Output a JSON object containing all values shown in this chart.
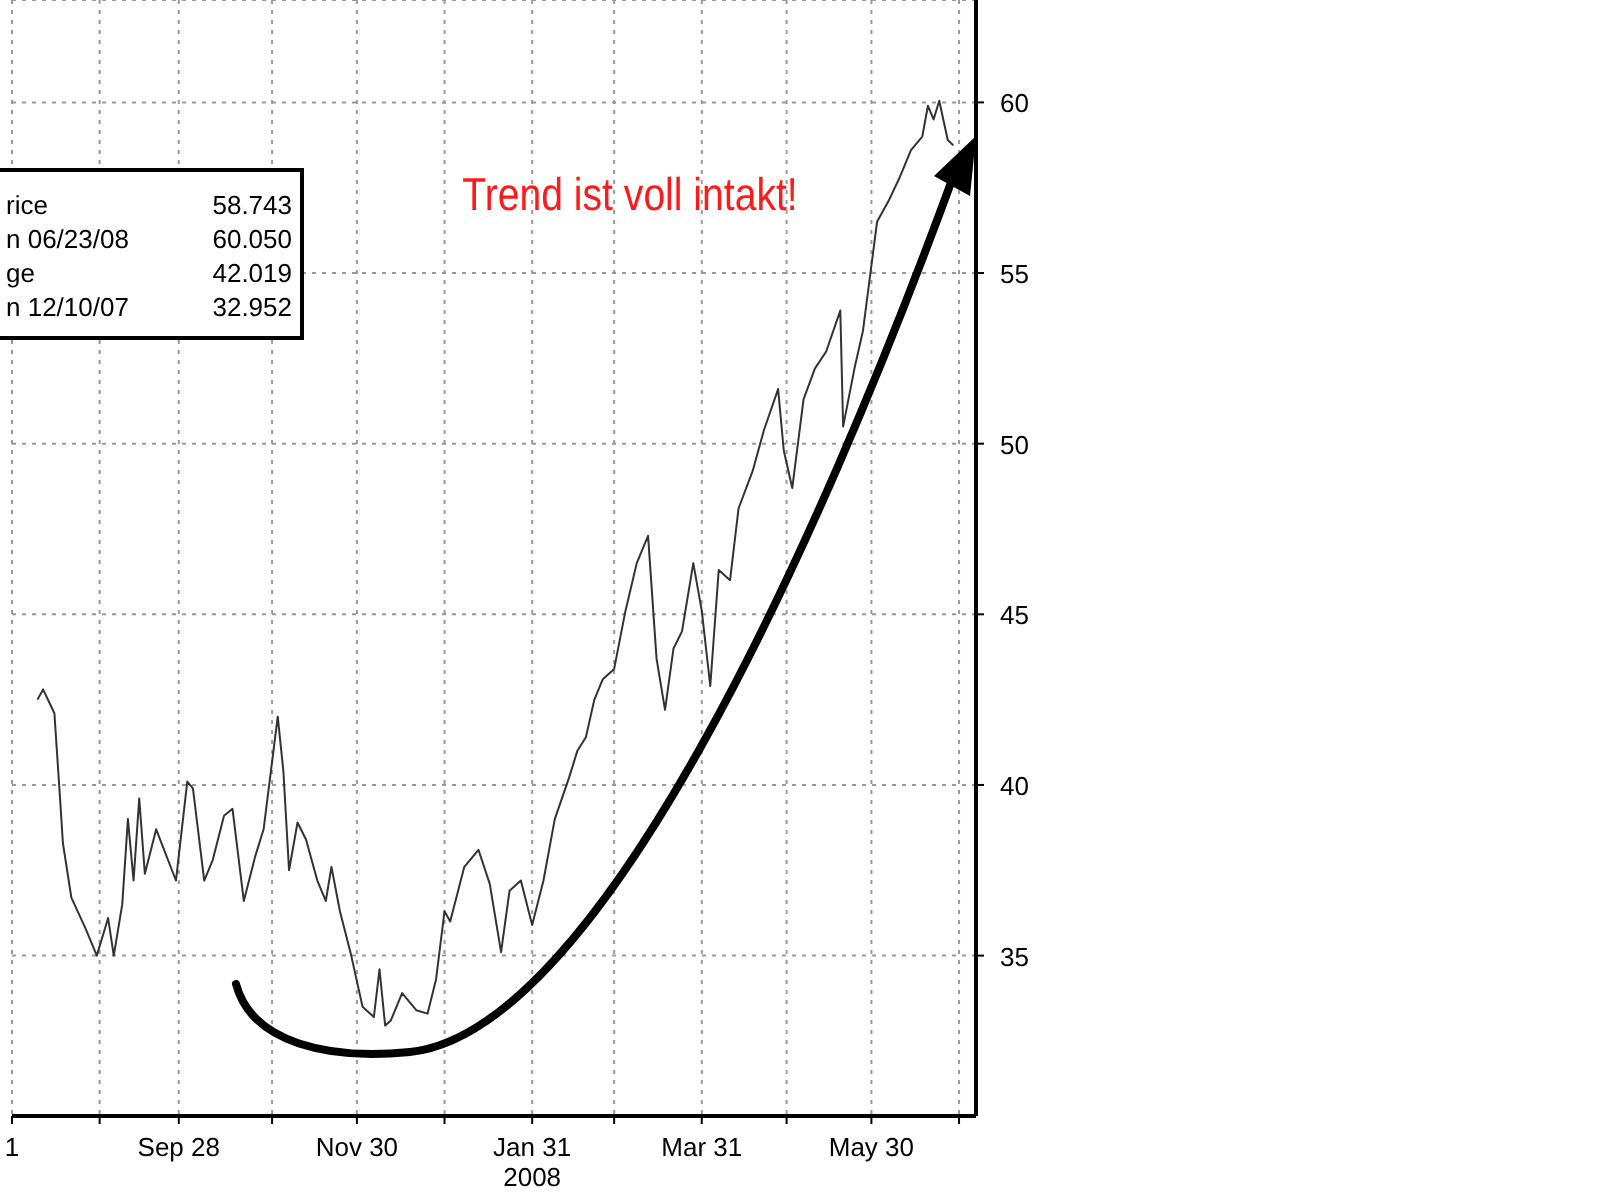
{
  "chart_data": {
    "type": "line",
    "x": [
      "2007-08-09",
      "2007-08-11",
      "2007-08-15",
      "2007-08-17",
      "2007-08-18",
      "2007-08-21",
      "2007-08-26",
      "2007-08-30",
      "2007-09-03",
      "2007-09-05",
      "2007-09-08",
      "2007-09-10",
      "2007-09-12",
      "2007-09-14",
      "2007-09-16",
      "2007-09-20",
      "2007-09-27",
      "2007-10-01",
      "2007-10-03",
      "2007-10-07",
      "2007-10-10",
      "2007-10-14",
      "2007-10-17",
      "2007-10-21",
      "2007-10-25",
      "2007-10-28",
      "2007-11-02",
      "2007-11-04",
      "2007-11-06",
      "2007-11-09",
      "2007-11-12",
      "2007-11-16",
      "2007-11-19",
      "2007-11-21",
      "2007-11-24",
      "2007-11-28",
      "2007-12-02",
      "2007-12-06",
      "2007-12-08",
      "2007-12-10",
      "2007-12-12",
      "2007-12-16",
      "2007-12-21",
      "2007-12-25",
      "2007-12-28",
      "2007-12-31",
      "2008-01-02",
      "2008-01-07",
      "2008-01-12",
      "2008-01-16",
      "2008-01-20",
      "2008-01-23",
      "2008-01-27",
      "2008-01-31",
      "2008-02-04",
      "2008-02-08",
      "2008-02-13",
      "2008-02-16",
      "2008-02-19",
      "2008-02-22",
      "2008-02-25",
      "2008-02-29",
      "2008-03-04",
      "2008-03-08",
      "2008-03-12",
      "2008-03-15",
      "2008-03-18",
      "2008-03-21",
      "2008-03-24",
      "2008-03-28",
      "2008-03-31",
      "2008-04-03",
      "2008-04-06",
      "2008-04-10",
      "2008-04-13",
      "2008-04-18",
      "2008-04-22",
      "2008-04-27",
      "2008-04-29",
      "2008-05-02",
      "2008-05-06",
      "2008-05-10",
      "2008-05-14",
      "2008-05-19",
      "2008-05-20",
      "2008-05-24",
      "2008-05-27",
      "2008-06-01",
      "2008-06-05",
      "2008-06-09",
      "2008-06-13",
      "2008-06-17",
      "2008-06-19",
      "2008-06-21",
      "2008-06-23",
      "2008-06-26",
      "2008-06-28"
    ],
    "series": [
      {
        "color": "#333333",
        "values": [
          42.5,
          42.8,
          42.1,
          39.6,
          38.3,
          36.7,
          35.8,
          35.0,
          36.1,
          35.0,
          36.5,
          39.0,
          37.2,
          39.6,
          37.4,
          38.7,
          37.2,
          40.1,
          39.9,
          37.2,
          37.8,
          39.1,
          39.3,
          36.6,
          37.9,
          38.7,
          42.0,
          40.4,
          37.5,
          38.9,
          38.4,
          37.2,
          36.6,
          37.6,
          36.3,
          35.0,
          33.5,
          33.2,
          34.6,
          32.95,
          33.1,
          33.9,
          33.4,
          33.3,
          34.3,
          36.3,
          36.0,
          37.6,
          38.1,
          37.1,
          35.1,
          36.9,
          37.2,
          35.9,
          37.2,
          39.0,
          40.2,
          41.0,
          41.4,
          42.5,
          43.1,
          43.4,
          45.1,
          46.5,
          47.3,
          43.7,
          42.2,
          44.0,
          44.5,
          46.5,
          45.1,
          42.9,
          46.3,
          46.0,
          48.1,
          49.2,
          50.4,
          51.6,
          49.8,
          48.7,
          51.3,
          52.2,
          52.7,
          53.9,
          50.5,
          52.2,
          53.3,
          56.5,
          57.1,
          57.8,
          58.6,
          59.0,
          59.9,
          59.5,
          60.05,
          58.9,
          58.74
        ]
      }
    ],
    "xlim": [
      "2007-07-31",
      "2008-07-06"
    ],
    "xticks": [
      {
        "value": "2007-07-31",
        "label": "1"
      },
      {
        "value": "2007-08-31",
        "label": null
      },
      {
        "value": "2007-09-28",
        "label": "Sep 28"
      },
      {
        "value": "2007-10-31",
        "label": null
      },
      {
        "value": "2007-11-30",
        "label": "Nov 30"
      },
      {
        "value": "2007-12-31",
        "label": null
      },
      {
        "value": "2008-01-31",
        "label": "Jan 31\n2008"
      },
      {
        "value": "2008-02-29",
        "label": null
      },
      {
        "value": "2008-03-31",
        "label": "Mar 31"
      },
      {
        "value": "2008-04-30",
        "label": null
      },
      {
        "value": "2008-05-30",
        "label": "May 30"
      },
      {
        "value": "2008-06-30",
        "label": null
      }
    ],
    "ylim": [
      30.3,
      63
    ],
    "yticks": [
      35,
      40,
      45,
      50,
      55,
      60
    ],
    "grid": true,
    "annotations": [
      "Trend ist voll intakt!",
      "rice",
      "58.743",
      "n 06/23/08",
      "60.050",
      "ge",
      "42.019",
      "n 12/10/07",
      "32.952"
    ]
  }
}
